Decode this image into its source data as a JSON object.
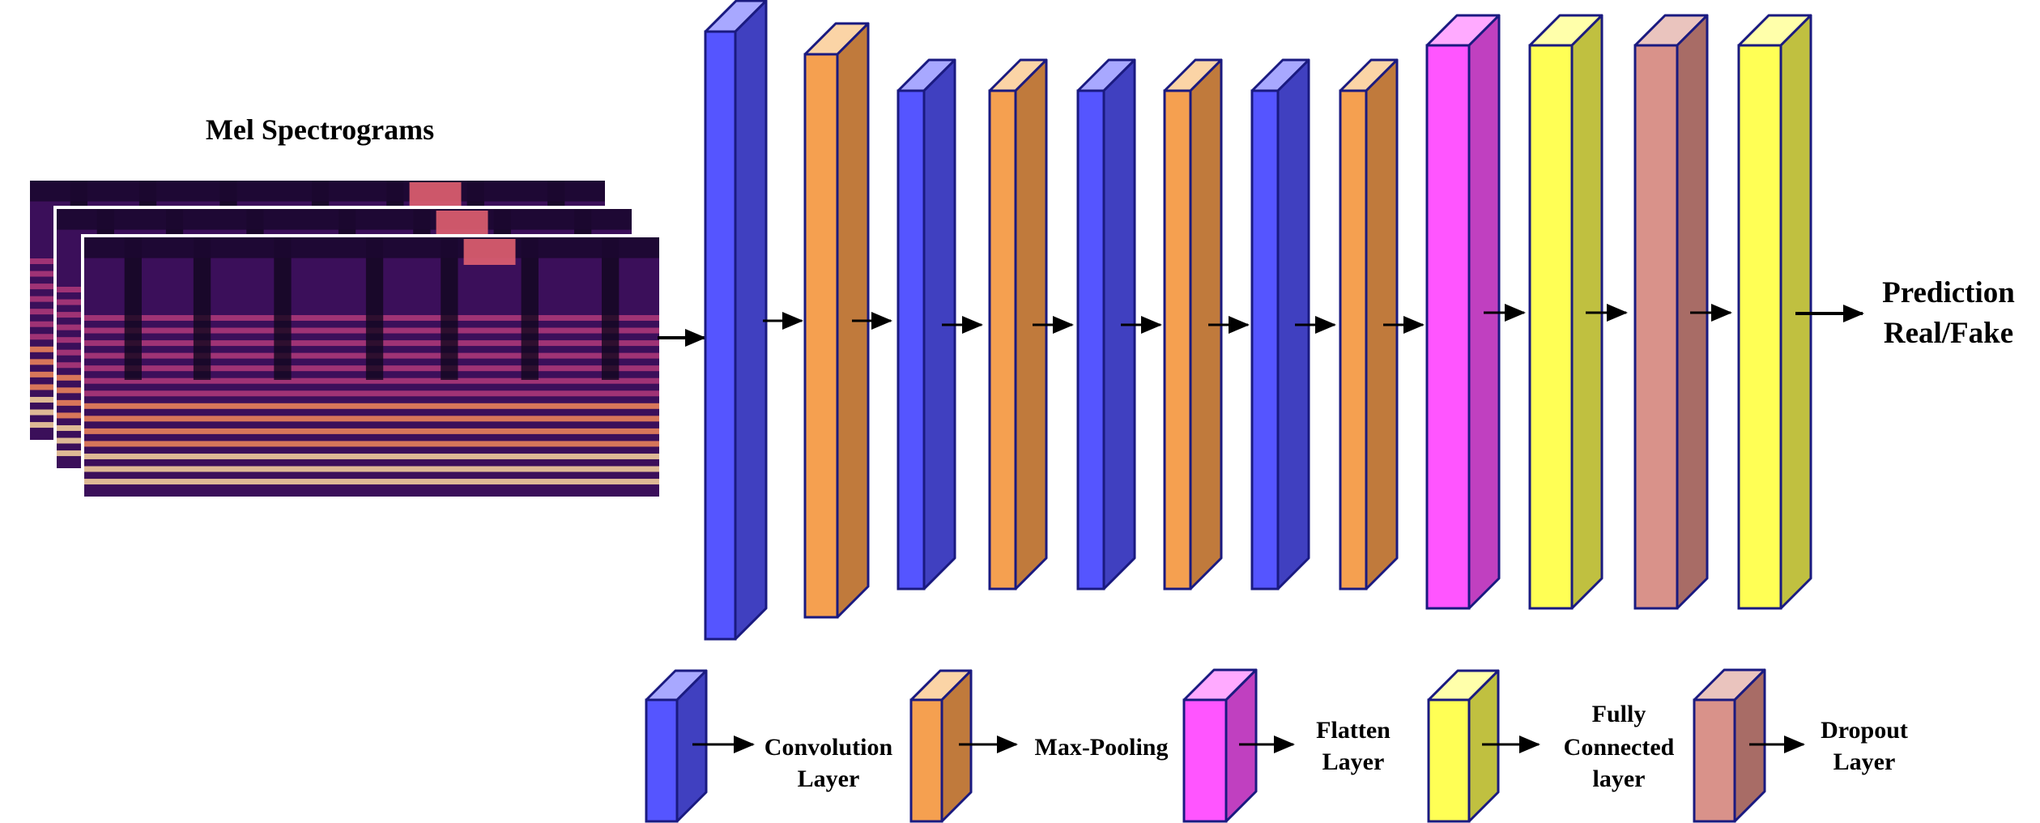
{
  "diagram": {
    "spectrogram_title": "Mel Spectrograms",
    "output_label_line1": "Prediction",
    "output_label_line2": "Real/Fake",
    "layers": [
      {
        "type": "conv"
      },
      {
        "type": "pool"
      },
      {
        "type": "conv"
      },
      {
        "type": "pool"
      },
      {
        "type": "conv"
      },
      {
        "type": "pool"
      },
      {
        "type": "conv"
      },
      {
        "type": "pool"
      },
      {
        "type": "flatten"
      },
      {
        "type": "fc"
      },
      {
        "type": "dropout"
      },
      {
        "type": "fc"
      }
    ],
    "colors": {
      "conv": {
        "front": "#5555ff",
        "side": "#4040c0",
        "top": "#a8a8ff"
      },
      "pool": {
        "front": "#f5a050",
        "side": "#c07a3c",
        "top": "#fbd4a6"
      },
      "flatten": {
        "front": "#ff55ff",
        "side": "#c040c0",
        "top": "#ffaaff"
      },
      "fc": {
        "front": "#ffff55",
        "side": "#c0c040",
        "top": "#ffffaa"
      },
      "dropout": {
        "front": "#d9928a",
        "side": "#a86c66",
        "top": "#eac4be"
      },
      "outline": "#1a1a80"
    }
  },
  "legend": {
    "items": [
      {
        "type": "conv",
        "line1": "Convolution",
        "line2": "Layer"
      },
      {
        "type": "pool",
        "line1": "Max-Pooling",
        "line2": ""
      },
      {
        "type": "flatten",
        "line1": "Flatten",
        "line2": "Layer"
      },
      {
        "type": "fc",
        "line1": "Fully",
        "line2": "Connected",
        "line3": "layer"
      },
      {
        "type": "dropout",
        "line1": "Dropout",
        "line2": "Layer"
      }
    ]
  }
}
